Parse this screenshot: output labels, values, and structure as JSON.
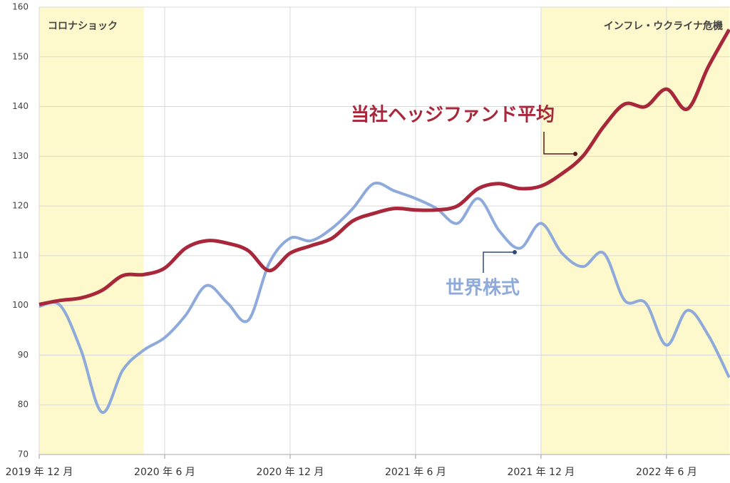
{
  "chart_data": {
    "type": "line",
    "categories": [
      "2019 年 12 月",
      null,
      null,
      null,
      null,
      null,
      "2020 年 6 月",
      null,
      null,
      null,
      null,
      null,
      "2020 年 12 月",
      null,
      null,
      null,
      null,
      null,
      "2021 年 6 月",
      null,
      null,
      null,
      null,
      null,
      "2021 年 12 月",
      null,
      null,
      null,
      null,
      null,
      "2022 年 6 月",
      null,
      null,
      null
    ],
    "series": [
      {
        "name": "当社ヘッジファンド平均",
        "color": "#a8273a",
        "values": [
          100.2,
          101,
          101.5,
          103,
          106,
          106.2,
          107.5,
          111.5,
          113,
          112.5,
          111,
          107,
          110.5,
          112,
          113.5,
          117,
          118.5,
          119.5,
          119.2,
          119.2,
          120,
          123.5,
          124.5,
          123.5,
          124,
          126.5,
          130,
          136,
          140.5,
          140,
          143.5,
          139.5,
          148,
          155.5
        ]
      },
      {
        "name": "世界株式",
        "color": "#8eaadb",
        "values": [
          99.8,
          100,
          91,
          78.5,
          87,
          91,
          93.5,
          98,
          104,
          100.5,
          97,
          108.5,
          113.5,
          113,
          115.5,
          119.5,
          124.5,
          123,
          121.5,
          119.5,
          116.5,
          121.5,
          115,
          111.5,
          116.5,
          110.5,
          107.8,
          110.5,
          101,
          100.5,
          92,
          99,
          94,
          85.5
        ]
      }
    ],
    "regions": [
      {
        "label": "コロナショック",
        "start": 0,
        "end": 5,
        "color": "#fdf9cc"
      },
      {
        "label": "インフレ・ウクライナ危機",
        "start": 24,
        "end": 33,
        "color": "#fdf9cc"
      }
    ],
    "ylim": [
      70,
      160
    ],
    "yticks": [
      70,
      80,
      90,
      100,
      110,
      120,
      130,
      140,
      150,
      160
    ],
    "grid": true
  }
}
